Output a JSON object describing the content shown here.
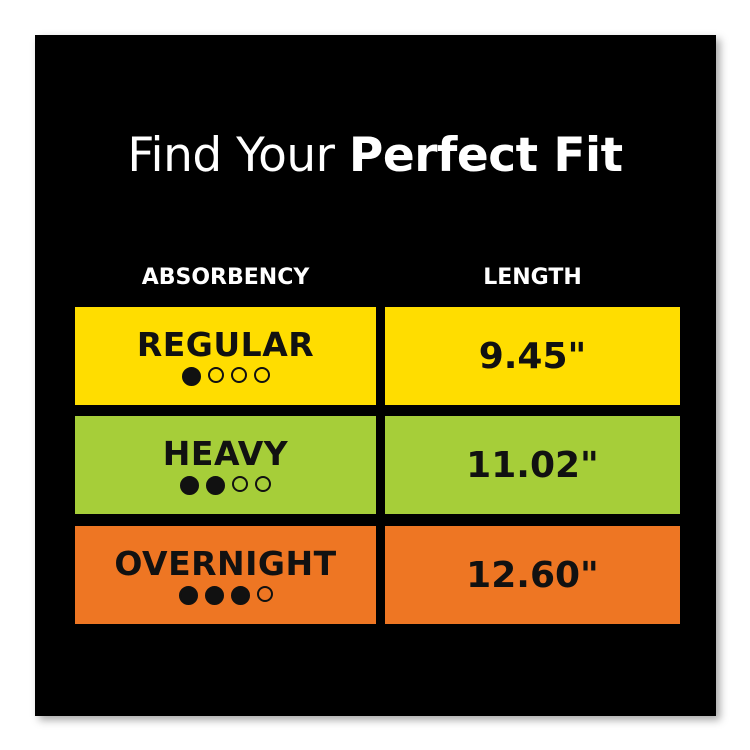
{
  "title": {
    "light": "Find Your ",
    "bold": "Perfect Fit"
  },
  "headers": {
    "absorbency": "ABSORBENCY",
    "length": "LENGTH"
  },
  "rows": [
    {
      "absorbency": "REGULAR",
      "level": 1,
      "max_level": 4,
      "length": "9.45\"",
      "color": "#FFDD00"
    },
    {
      "absorbency": "HEAVY",
      "level": 2,
      "max_level": 4,
      "length": "11.02\"",
      "color": "#A6CE39"
    },
    {
      "absorbency": "OVERNIGHT",
      "level": 3,
      "max_level": 4,
      "length": "12.60\"",
      "color": "#EE7623"
    }
  ]
}
